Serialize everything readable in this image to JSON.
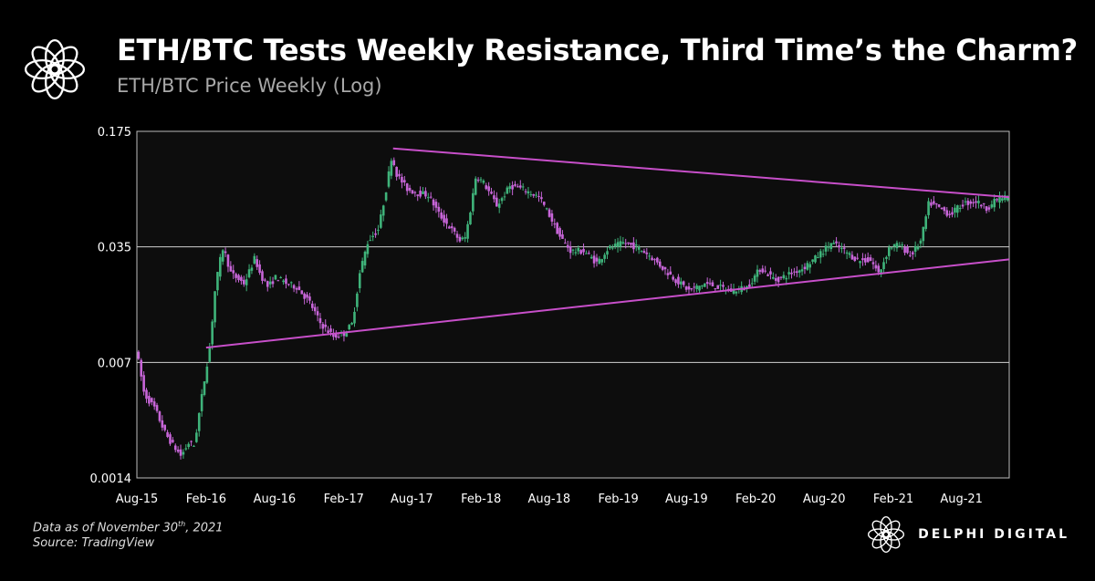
{
  "header": {
    "title": "ETH/BTC Tests Weekly Resistance, Third Time’s the Charm?",
    "subtitle": "ETH/BTC Price Weekly (Log)"
  },
  "footer": {
    "date_prefix": "Data as of November 30",
    "date_sup": "th",
    "date_suffix": ", 2021",
    "source": "Source: TradingView",
    "brand": "DELPHI DIGITAL",
    "logo_icon": "delphi-flower-icon"
  },
  "colors": {
    "background": "#000000",
    "plot_background": "#0d0d0d",
    "up": "#3fb37a",
    "down": "#c765d8",
    "trendline": "#c74fc9",
    "gridline": "#d0d0d0"
  },
  "chart_data": {
    "type": "candlestick",
    "scale": "log",
    "ylim": [
      0.0014,
      0.175
    ],
    "y_ticks": [
      0.175,
      0.035,
      0.007,
      0.0014
    ],
    "y_tick_labels": [
      "0.175",
      "0.035",
      "0.007",
      "0.0014"
    ],
    "x_range": [
      "2015-08-01",
      "2021-12-06"
    ],
    "x_ticks": [
      "2015-08",
      "2016-02",
      "2016-08",
      "2017-02",
      "2017-08",
      "2018-02",
      "2018-08",
      "2019-02",
      "2019-08",
      "2020-02",
      "2020-08",
      "2021-02",
      "2021-08"
    ],
    "x_tick_labels": [
      "Aug-15",
      "Feb-16",
      "Aug-16",
      "Feb-17",
      "Aug-17",
      "Feb-18",
      "Aug-18",
      "Feb-19",
      "Aug-19",
      "Feb-20",
      "Aug-20",
      "Feb-21",
      "Aug-21"
    ],
    "grid_lines": [
      0.035,
      0.007
    ],
    "price_path": [
      [
        "2015-08-03",
        0.0085
      ],
      [
        "2015-08-24",
        0.0045
      ],
      [
        "2015-09-21",
        0.0037
      ],
      [
        "2015-10-19",
        0.0026
      ],
      [
        "2015-11-09",
        0.0022
      ],
      [
        "2015-11-30",
        0.0019
      ],
      [
        "2015-12-21",
        0.0023
      ],
      [
        "2016-01-04",
        0.0022
      ],
      [
        "2016-01-25",
        0.0045
      ],
      [
        "2016-02-15",
        0.009
      ],
      [
        "2016-02-29",
        0.02
      ],
      [
        "2016-03-14",
        0.03
      ],
      [
        "2016-03-21",
        0.035
      ],
      [
        "2016-04-11",
        0.024
      ],
      [
        "2016-05-16",
        0.021
      ],
      [
        "2016-06-13",
        0.03
      ],
      [
        "2016-06-27",
        0.024
      ],
      [
        "2016-07-18",
        0.02
      ],
      [
        "2016-08-08",
        0.023
      ],
      [
        "2016-09-05",
        0.021
      ],
      [
        "2016-10-03",
        0.02
      ],
      [
        "2016-11-07",
        0.016
      ],
      [
        "2016-12-05",
        0.012
      ],
      [
        "2017-01-09",
        0.01
      ],
      [
        "2017-02-06",
        0.0105
      ],
      [
        "2017-02-27",
        0.012
      ],
      [
        "2017-03-20",
        0.025
      ],
      [
        "2017-04-10",
        0.038
      ],
      [
        "2017-05-08",
        0.045
      ],
      [
        "2017-05-29",
        0.08
      ],
      [
        "2017-06-12",
        0.125
      ],
      [
        "2017-06-26",
        0.095
      ],
      [
        "2017-07-24",
        0.078
      ],
      [
        "2017-08-21",
        0.074
      ],
      [
        "2017-09-18",
        0.072
      ],
      [
        "2017-10-16",
        0.055
      ],
      [
        "2017-11-13",
        0.046
      ],
      [
        "2017-12-11",
        0.038
      ],
      [
        "2017-12-25",
        0.04
      ],
      [
        "2018-01-08",
        0.06
      ],
      [
        "2018-01-22",
        0.095
      ],
      [
        "2018-02-12",
        0.085
      ],
      [
        "2018-03-19",
        0.062
      ],
      [
        "2018-04-23",
        0.082
      ],
      [
        "2018-05-28",
        0.078
      ],
      [
        "2018-07-09",
        0.07
      ],
      [
        "2018-08-06",
        0.054
      ],
      [
        "2018-09-03",
        0.04
      ],
      [
        "2018-10-01",
        0.033
      ],
      [
        "2018-11-05",
        0.033
      ],
      [
        "2018-12-10",
        0.028
      ],
      [
        "2019-01-07",
        0.034
      ],
      [
        "2019-02-18",
        0.037
      ],
      [
        "2019-03-25",
        0.035
      ],
      [
        "2019-04-29",
        0.031
      ],
      [
        "2019-06-03",
        0.026
      ],
      [
        "2019-07-08",
        0.022
      ],
      [
        "2019-08-12",
        0.019
      ],
      [
        "2019-09-23",
        0.021
      ],
      [
        "2019-10-28",
        0.02
      ],
      [
        "2019-12-02",
        0.019
      ],
      [
        "2020-01-13",
        0.02
      ],
      [
        "2020-02-17",
        0.026
      ],
      [
        "2020-03-30",
        0.022
      ],
      [
        "2020-05-04",
        0.024
      ],
      [
        "2020-06-08",
        0.026
      ],
      [
        "2020-07-13",
        0.03
      ],
      [
        "2020-08-24",
        0.037
      ],
      [
        "2020-09-28",
        0.033
      ],
      [
        "2020-11-02",
        0.029
      ],
      [
        "2020-12-07",
        0.029
      ],
      [
        "2020-12-28",
        0.024
      ],
      [
        "2021-01-25",
        0.035
      ],
      [
        "2021-02-22",
        0.036
      ],
      [
        "2021-03-22",
        0.031
      ],
      [
        "2021-04-19",
        0.038
      ],
      [
        "2021-05-10",
        0.065
      ],
      [
        "2021-06-07",
        0.06
      ],
      [
        "2021-07-05",
        0.055
      ],
      [
        "2021-08-09",
        0.064
      ],
      [
        "2021-09-13",
        0.066
      ],
      [
        "2021-10-11",
        0.06
      ],
      [
        "2021-11-08",
        0.068
      ],
      [
        "2021-11-29",
        0.07
      ]
    ],
    "trendlines": [
      {
        "kind": "resistance",
        "points": [
          [
            "2017-06-12",
            0.138
          ],
          [
            "2021-12-06",
            0.07
          ]
        ]
      },
      {
        "kind": "support",
        "points": [
          [
            "2016-02-01",
            0.0086
          ],
          [
            "2021-12-06",
            0.0294
          ]
        ]
      }
    ]
  }
}
